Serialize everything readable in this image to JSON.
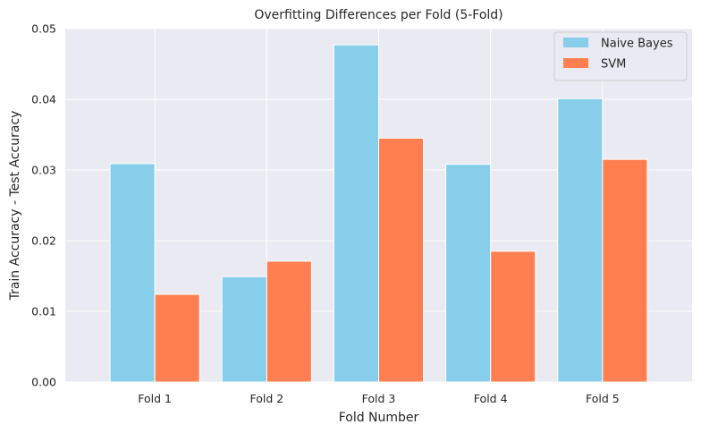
{
  "chart_data": {
    "type": "bar",
    "title": "Overfitting Differences per Fold (5-Fold)",
    "xlabel": "Fold Number",
    "ylabel": "Train Accuracy - Test Accuracy",
    "categories": [
      "Fold 1",
      "Fold 2",
      "Fold 3",
      "Fold 4",
      "Fold 5"
    ],
    "series": [
      {
        "name": "Naive Bayes",
        "color": "#87ceeb",
        "values": [
          0.0309,
          0.0149,
          0.0477,
          0.0308,
          0.0401
        ]
      },
      {
        "name": "SVM",
        "color": "#ff7f50",
        "values": [
          0.0124,
          0.0171,
          0.0345,
          0.0185,
          0.0315
        ]
      }
    ],
    "ylim": [
      0,
      0.05
    ],
    "yticks": [
      0.0,
      0.01,
      0.02,
      0.03,
      0.04,
      0.05
    ],
    "ytick_labels": [
      "0.00",
      "0.01",
      "0.02",
      "0.03",
      "0.04",
      "0.05"
    ],
    "grid": true,
    "legend_position": "top-right",
    "plot_background": "#eaeaf2"
  }
}
